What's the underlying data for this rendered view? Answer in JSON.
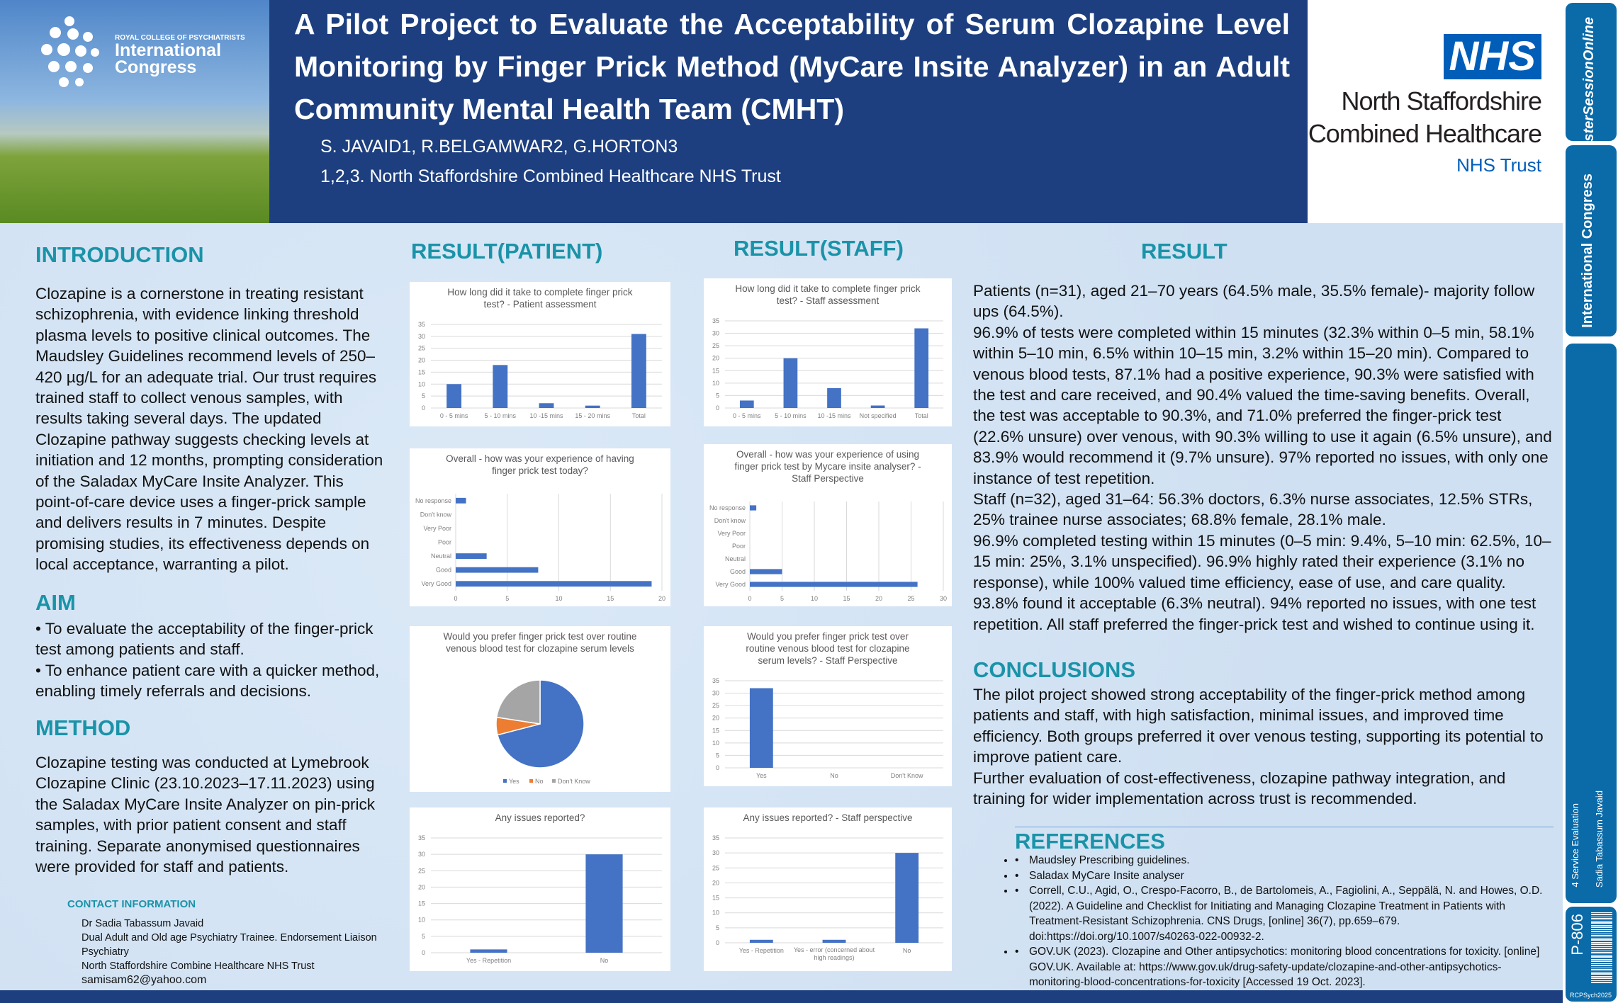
{
  "header": {
    "logo_small": "ROYAL COLLEGE OF PSYCHIATRISTS",
    "logo_big1": "International",
    "logo_big2": "Congress",
    "title": "A Pilot Project to Evaluate the Acceptability of Serum Clozapine Level Monitoring by Finger Prick Method (MyCare Insite Analyzer) in an Adult Community Mental Health Team (CMHT)",
    "authors": "S. JAVAID1, R.BELGAMWAR2, G.HORTON3",
    "affiliation": "1,2,3. North Staffordshire Combined Healthcare NHS Trust",
    "nhs_badge": "NHS",
    "org_line1": "North Staffordshire",
    "org_line2": "Combined Healthcare",
    "org_trust": "NHS Trust"
  },
  "sidebar": {
    "pso": "PosterSessionOnline",
    "congress": "International Congress",
    "category": "4 Service Evaluation",
    "author": "Sadia Tabassum Javaid",
    "poster_id": "P-806",
    "event": "RCPSych2025"
  },
  "intro": {
    "heading": "INTRODUCTION",
    "text": "Clozapine is a cornerstone in treating resistant schizophrenia, with evidence linking threshold plasma levels to positive clinical outcomes. The Maudsley Guidelines recommend levels of 250–420 µg/L for an adequate trial. Our trust requires trained staff to collect venous samples, with results taking several days. The updated Clozapine pathway suggests checking levels at initiation and 12 months, prompting consideration of the Saladax MyCare Insite Analyzer. This point-of-care device uses a finger-prick sample and delivers results in 7 minutes. Despite promising studies, its effectiveness depends on local acceptance, warranting a pilot."
  },
  "aim": {
    "heading": "AIM",
    "items": [
      "• To evaluate the acceptability of the finger-prick test among patients and staff.",
      "• To enhance patient care with a quicker method, enabling timely referrals and decisions."
    ]
  },
  "method": {
    "heading": "METHOD",
    "text": "Clozapine testing was conducted at Lymebrook Clozapine Clinic (23.10.2023–17.11.2023) using the Saladax MyCare Insite Analyzer on pin-prick samples, with prior patient consent and staff training. Separate anonymised questionnaires were provided for staff and patients."
  },
  "contact": {
    "heading": "CONTACT INFORMATION",
    "name": "Dr Sadia Tabassum Javaid",
    "role": "Dual Adult and Old age Psychiatry Trainee. Endorsement Liaison Psychiatry",
    "org": "North Staffordshire Combine Healthcare NHS Trust",
    "email": "samisam62@yahoo.com"
  },
  "result_patient_heading": "RESULT(PATIENT)",
  "result_staff_heading": "RESULT(STAFF)",
  "result": {
    "heading": "RESULT",
    "paragraphs": [
      "Patients (n=31), aged 21–70 years (64.5% male, 35.5% female)- majority follow ups (64.5%).",
      "96.9% of tests were completed within 15 minutes (32.3% within 0–5 min, 58.1% within 5–10 min, 6.5% within 10–15 min, 3.2% within 15–20 min). Compared to venous blood tests, 87.1% had a positive experience, 90.3% were satisfied with the test and care received, and 90.4% valued the time-saving benefits. Overall, the test was acceptable to 90.3%, and 71.0% preferred the finger-prick test (22.6% unsure) over venous, with 90.3% willing to use it again (6.5% unsure), and 83.9% would recommend it (9.7% unsure). 97% reported no issues, with only one instance of test repetition.",
      "Staff (n=32), aged 31–64: 56.3% doctors, 6.3% nurse associates, 12.5% STRs, 25% trainee nurse associates; 68.8% female, 28.1% male.",
      "96.9% completed testing within 15 minutes (0–5 min: 9.4%, 5–10 min: 62.5%, 10–15 min: 25%, 3.1% unspecified). 96.9% highly rated their experience (3.1% no response), while 100% valued time efficiency, ease of use, and care quality. 93.8% found it acceptable (6.3% neutral). 94% reported no issues, with one test repetition. All staff preferred the finger-prick test and wished to continue using it."
    ]
  },
  "conclusions": {
    "heading": "CONCLUSIONS",
    "paragraphs": [
      "The pilot project showed strong acceptability of the finger-prick method among patients and staff, with high satisfaction, minimal issues, and improved time efficiency. Both groups preferred it over venous testing, supporting its potential to improve patient care.",
      "Further evaluation of cost-effectiveness, clozapine pathway integration, and training for wider implementation across trust is recommended."
    ]
  },
  "references": {
    "heading": "REFERENCES",
    "items": [
      "Maudsley Prescribing guidelines.",
      "Saladax MyCare Insite analyser",
      "Correll, C.U., Agid, O., Crespo-Facorro, B., de Bartolomeis, A., Fagiolini, A., Seppälä, N. and Howes, O.D. (2022). A Guideline and Checklist for Initiating and Managing Clozapine Treatment in Patients with Treatment-Resistant Schizophrenia. CNS Drugs, [online] 36(7), pp.659–679. doi:https://doi.org/10.1007/s40263-022-00932-2.",
      "GOV.UK (2023). Clozapine and Other antipsychotics: monitoring blood concentrations for toxicity. [online] GOV.UK. Available at: https://www.gov.uk/drug-safety-update/clozapine-and-other-antipsychotics-monitoring-blood-concentrations-for-toxicity [Accessed 19 Oct. 2023]."
    ]
  },
  "colors": {
    "bar": "#4472c4",
    "no": "#ed7d31",
    "dontknow": "#a5a5a5",
    "header": "#1d3f7f",
    "heading": "#1a93a8"
  },
  "chart_data": [
    {
      "id": "p1",
      "type": "bar",
      "title": "How long did it take to complete finger prick test? - Patient assessment",
      "categories": [
        "0 - 5 mins",
        "5 - 10 mins",
        "10 -15 mins",
        "15 - 20 mins",
        "Total"
      ],
      "values": [
        10,
        18,
        2,
        1,
        31
      ],
      "ylim": [
        0,
        35
      ],
      "yticks": [
        0,
        5,
        10,
        15,
        20,
        25,
        30,
        35
      ]
    },
    {
      "id": "p2",
      "type": "hbar",
      "title": "Overall - how was your experience of having finger prick test today?",
      "categories": [
        "No response",
        "Don't know",
        "Very Poor",
        "Poor",
        "Neutral",
        "Good",
        "Very Good"
      ],
      "values": [
        1,
        0,
        0,
        0,
        3,
        8,
        19
      ],
      "xlim": [
        0,
        20
      ],
      "xticks": [
        0,
        5,
        10,
        15,
        20
      ]
    },
    {
      "id": "p3",
      "type": "pie",
      "title": "Would you prefer finger prick test over routine venous blood test for clozapine serum levels",
      "categories": [
        "Yes",
        "No",
        "Don't Know"
      ],
      "values": [
        22,
        2,
        7
      ]
    },
    {
      "id": "p4",
      "type": "bar",
      "title": "Any issues reported?",
      "categories": [
        "Yes - Repetition",
        "No"
      ],
      "values": [
        1,
        30
      ],
      "ylim": [
        0,
        35
      ],
      "yticks": [
        0,
        5,
        10,
        15,
        20,
        25,
        30,
        35
      ]
    },
    {
      "id": "s1",
      "type": "bar",
      "title": "How long did it take to complete finger prick test? - Staff assessment",
      "categories": [
        "0 - 5 mins",
        "5 - 10 mins",
        "10 -15 mins",
        "Not specified",
        "Total"
      ],
      "values": [
        3,
        20,
        8,
        1,
        32
      ],
      "ylim": [
        0,
        35
      ],
      "yticks": [
        0,
        5,
        10,
        15,
        20,
        25,
        30,
        35
      ]
    },
    {
      "id": "s2",
      "type": "hbar",
      "title": "Overall - how was your experience of using finger prick test by Mycare insite analyser? - Staff Perspective",
      "categories": [
        "No response",
        "Don't know",
        "Very Poor",
        "Poor",
        "Neutral",
        "Good",
        "Very Good"
      ],
      "values": [
        1,
        0,
        0,
        0,
        0,
        5,
        26
      ],
      "xlim": [
        0,
        30
      ],
      "xticks": [
        0,
        5,
        10,
        15,
        20,
        25,
        30
      ]
    },
    {
      "id": "s3",
      "type": "bar",
      "title": "Would you prefer finger prick test over routine venous blood test for clozapine serum levels? - Staff Perspective",
      "categories": [
        "Yes",
        "No",
        "Don't Know"
      ],
      "values": [
        32,
        0,
        0
      ],
      "ylim": [
        0,
        35
      ],
      "yticks": [
        0,
        5,
        10,
        15,
        20,
        25,
        30,
        35
      ]
    },
    {
      "id": "s4",
      "type": "bar",
      "title": "Any issues reported?  - Staff perspective",
      "categories": [
        "Yes - Repetition",
        "Yes - error (concerned about high readings)",
        "No"
      ],
      "values": [
        1,
        1,
        30
      ],
      "ylim": [
        0,
        35
      ],
      "yticks": [
        0,
        5,
        10,
        15,
        20,
        25,
        30,
        35
      ]
    }
  ]
}
